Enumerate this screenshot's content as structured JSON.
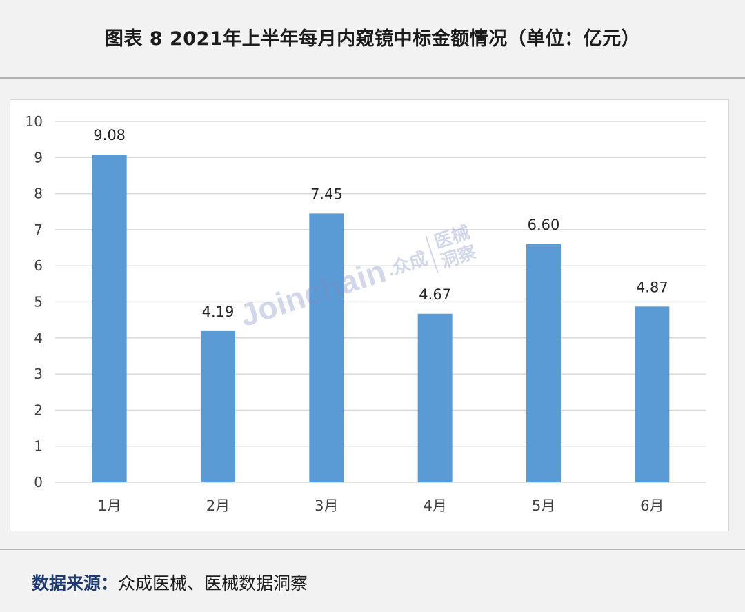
{
  "title": "图表 8  2021年上半年每月内窥镜中标金额情况（单位：亿元）",
  "footer": {
    "label": "数据来源：",
    "text": "众成医械、医械数据洞察"
  },
  "watermark": {
    "brand": "Joinchain",
    "cn": ".众成",
    "stack_top": "医械",
    "stack_bottom": "洞察"
  },
  "chart_data": {
    "type": "bar",
    "categories": [
      "1月",
      "2月",
      "3月",
      "4月",
      "5月",
      "6月"
    ],
    "values": [
      9.08,
      4.19,
      7.45,
      4.67,
      6.6,
      4.87
    ],
    "value_labels": [
      "9.08",
      "4.19",
      "7.45",
      "4.67",
      "6.60",
      "4.87"
    ],
    "ylim": [
      0,
      10
    ],
    "yticks": [
      "0",
      "1",
      "2",
      "3",
      "4",
      "5",
      "6",
      "7",
      "8",
      "9",
      "10"
    ],
    "grid": true,
    "bar_color": "#5b9bd5",
    "gridline_color": "#d9d9d9"
  }
}
